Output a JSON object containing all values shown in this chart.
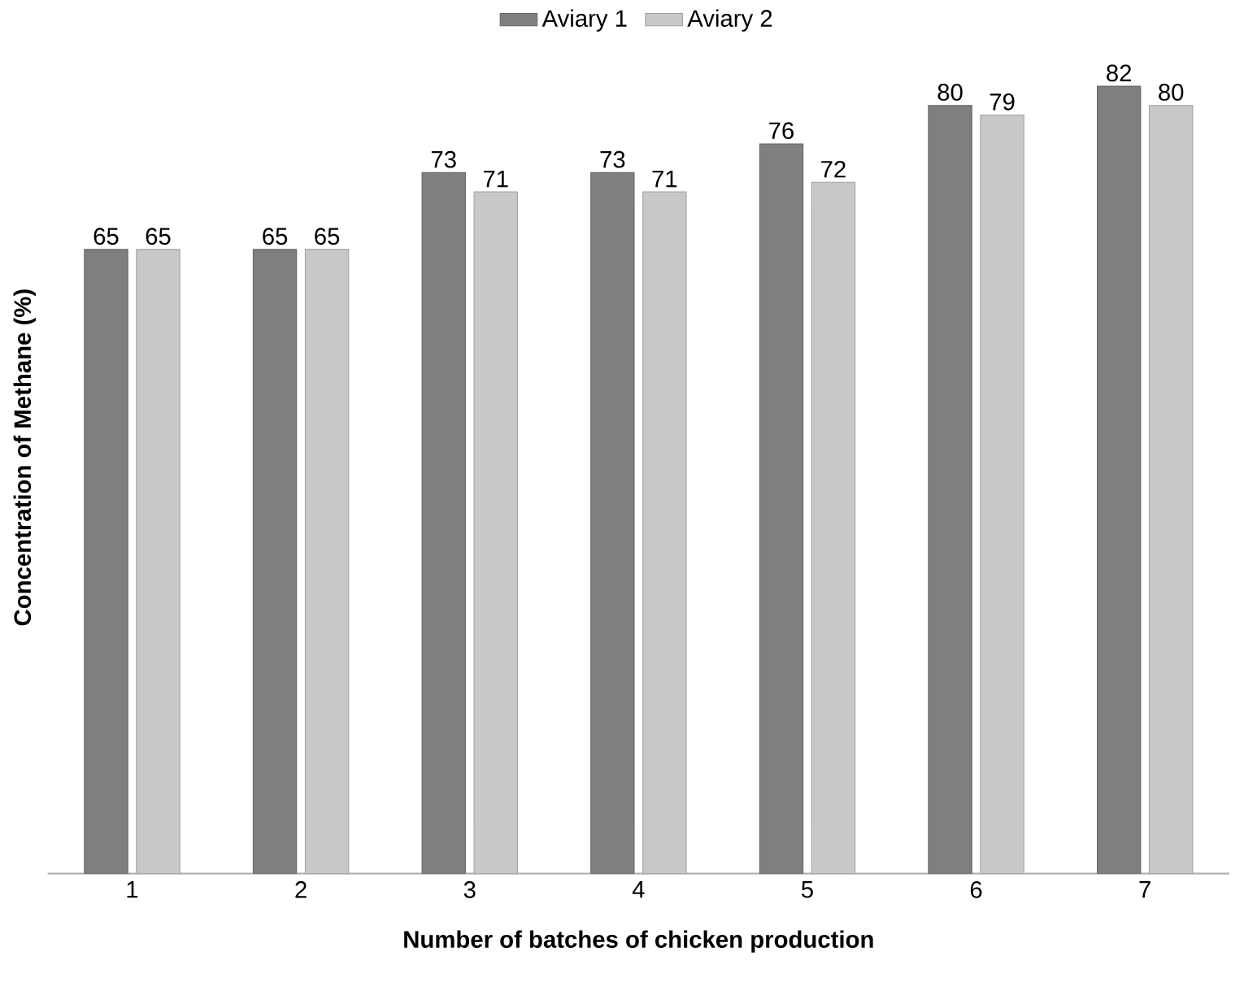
{
  "chart_data": {
    "type": "bar",
    "xlabel": "Number of batches of chicken production",
    "ylabel": "Concentration of Methane (%)",
    "categories": [
      "1",
      "2",
      "3",
      "4",
      "5",
      "6",
      "7"
    ],
    "series": [
      {
        "name": "Aviary 1",
        "color": "#7f7f7f",
        "values": [
          65,
          65,
          73,
          73,
          76,
          80,
          82
        ]
      },
      {
        "name": "Aviary 2",
        "color": "#c8c8c8",
        "values": [
          65,
          65,
          71,
          71,
          72,
          79,
          80
        ]
      }
    ],
    "data_labels": true,
    "legend": "top"
  }
}
